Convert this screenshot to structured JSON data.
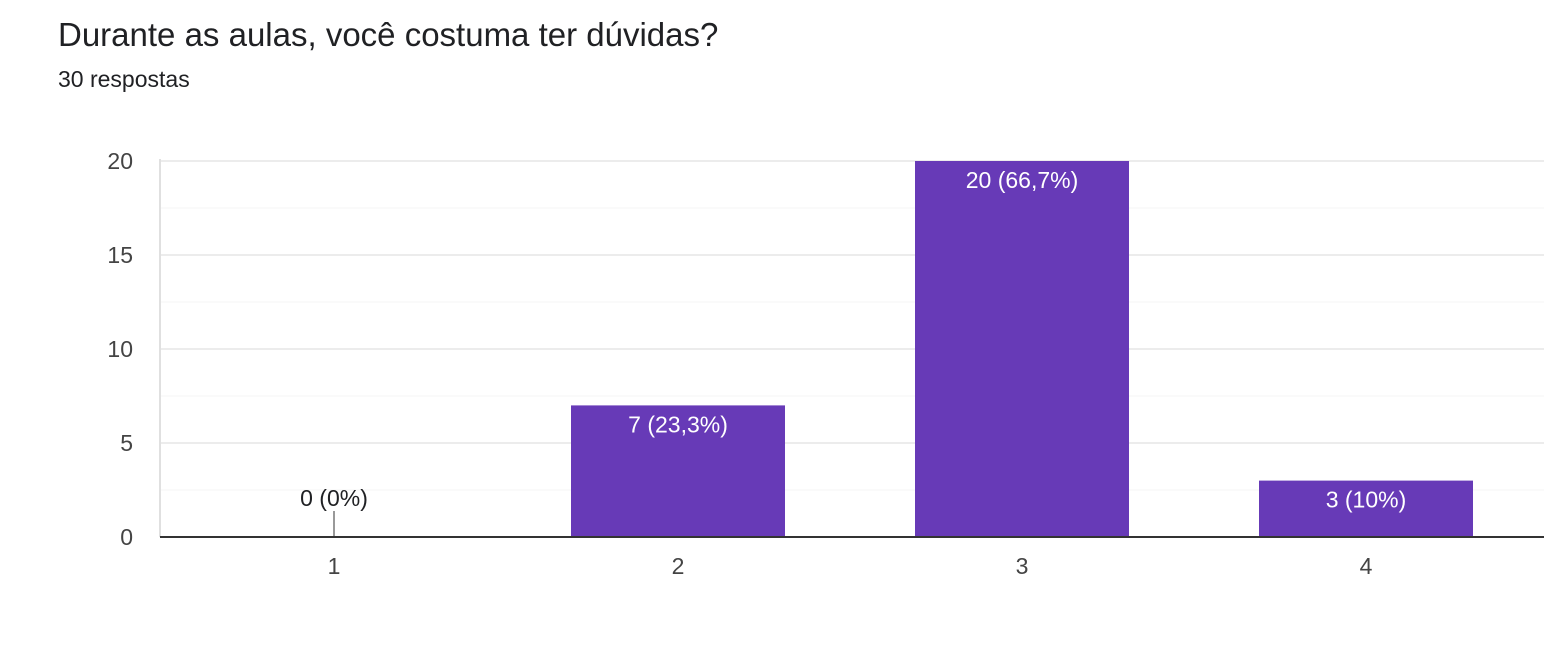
{
  "header": {
    "title": "Durante as aulas, você costuma ter dúvidas?",
    "subtitle": "30 respostas"
  },
  "colors": {
    "bar": "#673ab7",
    "grid": "#ececec",
    "axis": "#333333",
    "label_inside": "#ffffff",
    "label_outside": "#202124",
    "zero_marker": "#999999"
  },
  "chart_data": {
    "type": "bar",
    "categories": [
      "1",
      "2",
      "3",
      "4"
    ],
    "values": [
      0,
      7,
      20,
      3
    ],
    "data_labels": [
      "0 (0%)",
      "7 (23,3%)",
      "20 (66,7%)",
      "3 (10%)"
    ],
    "title": "Durante as aulas, você costuma ter dúvidas?",
    "subtitle": "30 respostas",
    "ylim": [
      0,
      20
    ],
    "yticks": [
      0,
      5,
      10,
      15,
      20
    ],
    "minor_gridlines": true,
    "grid": true,
    "legend": "none"
  }
}
